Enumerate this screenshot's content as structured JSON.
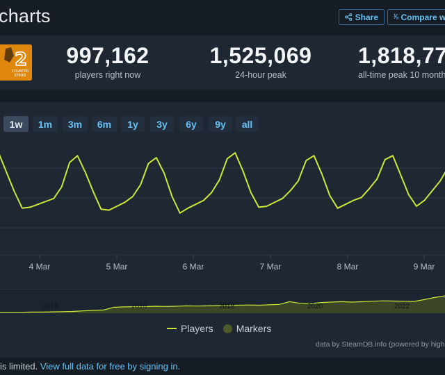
{
  "header": {
    "title": "charts",
    "share_label": "Share",
    "compare_label": "Compare w"
  },
  "stats": [
    {
      "value": "997,162",
      "label": "players right now"
    },
    {
      "value": "1,525,069",
      "label": "24-hour peak"
    },
    {
      "value": "1,818,77",
      "label": "all-time peak 10 month"
    }
  ],
  "logo": {
    "line1": "COUNTER",
    "line2": "STRIKE"
  },
  "ranges": [
    "1w",
    "1m",
    "3m",
    "6m",
    "1y",
    "3y",
    "6y",
    "9y",
    "all"
  ],
  "active_range": "1w",
  "legend": {
    "players": "Players",
    "markers": "Markers"
  },
  "credits": "data by SteamDB.info (powered by high",
  "footer": {
    "text": "is limited.",
    "link": "View full data for free by signing in."
  },
  "colors": {
    "accent": "#67c1f5",
    "series": "#cfe838",
    "background": "#171d25",
    "panel": "#1f2733"
  },
  "chart_data": [
    {
      "type": "line",
      "series": [
        {
          "name": "Players",
          "values": [
            1.55,
            1.35,
            1.15,
            0.98,
            0.99,
            1.02,
            1.05,
            1.08,
            1.2,
            1.45,
            1.52,
            1.35,
            1.15,
            0.97,
            0.96,
            1.0,
            1.04,
            1.1,
            1.22,
            1.44,
            1.5,
            1.34,
            1.1,
            0.93,
            0.98,
            1.02,
            1.06,
            1.14,
            1.27,
            1.49,
            1.55,
            1.36,
            1.14,
            0.99,
            1.0,
            1.04,
            1.08,
            1.16,
            1.26,
            1.47,
            1.52,
            1.33,
            1.11,
            0.98,
            1.02,
            1.06,
            1.09,
            1.18,
            1.28,
            1.48,
            1.52,
            1.32,
            1.12,
            1.0,
            1.06,
            1.16,
            1.26,
            1.4
          ]
        }
      ],
      "x_tick_labels": [
        "4 Mar",
        "5 Mar",
        "6 Mar",
        "7 Mar",
        "8 Mar",
        "9 Mar"
      ],
      "grid": true
    },
    {
      "type": "area",
      "series": [
        {
          "name": "Players",
          "values": [
            0.01,
            0.01,
            0.01,
            0.02,
            0.02,
            0.03,
            0.04,
            0.05,
            0.08,
            0.1,
            0.12,
            0.25,
            0.27,
            0.28,
            0.28,
            0.3,
            0.29,
            0.3,
            0.32,
            0.31,
            0.32,
            0.33,
            0.34,
            0.35,
            0.36,
            0.35,
            0.37,
            0.39,
            0.52,
            0.44,
            0.42,
            0.48,
            0.5,
            0.52,
            0.5,
            0.52,
            0.54,
            0.56,
            0.55,
            0.54,
            0.53,
            0.62,
            0.72,
            0.8
          ]
        }
      ],
      "x_tick_labels": [
        "2014",
        "2016",
        "2018",
        "2020",
        "2022"
      ]
    }
  ]
}
